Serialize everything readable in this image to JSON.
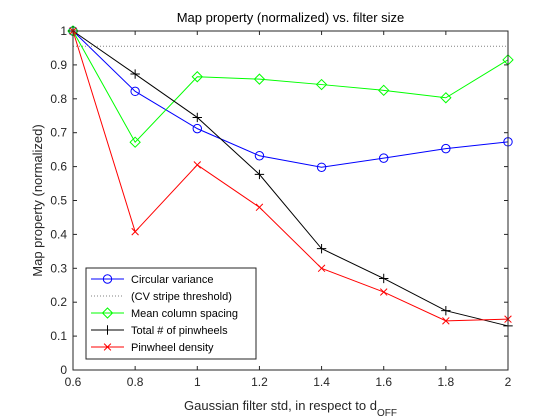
{
  "chart_data": {
    "type": "line",
    "title": "Map property (normalized) vs. filter size",
    "xlabel": "Gaussian filter std, in respect to d",
    "xlabel_subscript": "OFF",
    "ylabel": "Map property (normalized)",
    "xlim": [
      0.6,
      2.0
    ],
    "ylim": [
      0,
      1.0
    ],
    "xticks": [
      0.6,
      0.8,
      1.0,
      1.2,
      1.4,
      1.6,
      1.8,
      2.0
    ],
    "xtick_labels": [
      "0.6",
      "0.8",
      "1",
      "1.2",
      "1.4",
      "1.6",
      "1.8",
      "2"
    ],
    "yticks": [
      0,
      0.1,
      0.2,
      0.3,
      0.4,
      0.5,
      0.6,
      0.7,
      0.8,
      0.9,
      1.0
    ],
    "ytick_labels": [
      "0",
      "0.1",
      "0.2",
      "0.3",
      "0.4",
      "0.5",
      "0.6",
      "0.7",
      "0.8",
      "0.9",
      "1"
    ],
    "grid": false,
    "legend_position": "bottom-left",
    "x": [
      0.6,
      0.8,
      1.0,
      1.2,
      1.4,
      1.6,
      1.8,
      2.0
    ],
    "series": [
      {
        "name": "Circular variance",
        "color": "#0000ff",
        "marker": "circle",
        "style": "solid",
        "values": [
          1.0,
          0.822,
          0.712,
          0.632,
          0.598,
          0.625,
          0.653,
          0.673
        ]
      },
      {
        "name": "(CV stripe threshold)",
        "color": "#808080",
        "marker": "none",
        "style": "dotted",
        "values": [
          0.955,
          0.955,
          0.955,
          0.955,
          0.955,
          0.955,
          0.955,
          0.955
        ]
      },
      {
        "name": "Mean column spacing",
        "color": "#00ff00",
        "marker": "diamond",
        "style": "solid",
        "values": [
          1.0,
          0.672,
          0.865,
          0.858,
          0.842,
          0.825,
          0.803,
          0.915
        ]
      },
      {
        "name": "Total # of pinwheels",
        "color": "#000000",
        "marker": "plus",
        "style": "solid",
        "values": [
          1.0,
          0.873,
          0.745,
          0.577,
          0.358,
          0.27,
          0.175,
          0.13
        ]
      },
      {
        "name": "Pinwheel density",
        "color": "#ff0000",
        "marker": "x",
        "style": "solid",
        "values": [
          1.0,
          0.408,
          0.605,
          0.48,
          0.3,
          0.23,
          0.145,
          0.15
        ]
      }
    ]
  }
}
